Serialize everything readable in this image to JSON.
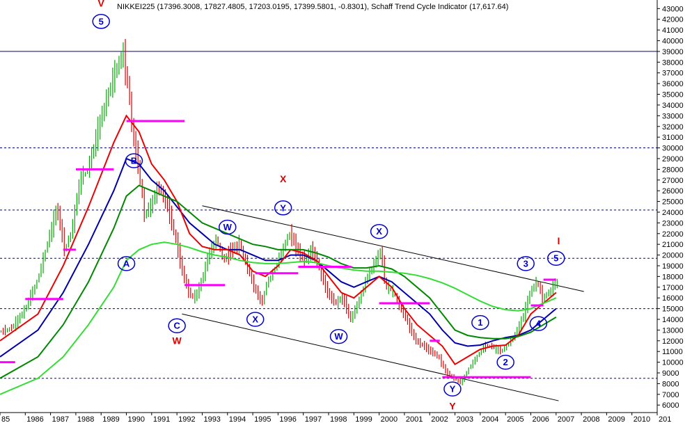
{
  "chart_data": {
    "type": "line",
    "title": "NIKKEI225 (17396.3008, 17827.4805, 17203.0195, 17399.5801, -0.8301), Schaff Trend Cycle Indicator (17,617.64)",
    "y_ticks": [
      6000,
      7000,
      8000,
      9000,
      10000,
      11000,
      12000,
      13000,
      14000,
      15000,
      16000,
      17000,
      18000,
      19000,
      20000,
      21000,
      22000,
      23000,
      24000,
      25000,
      26000,
      27000,
      28000,
      29000,
      30000,
      31000,
      32000,
      33000,
      34000,
      35000,
      36000,
      37000,
      38000,
      39000,
      40000,
      41000,
      42000,
      43000
    ],
    "ylim": [
      5300,
      43800
    ],
    "x_ticks": [
      "85",
      "1986",
      "1987",
      "1988",
      "1989",
      "1990",
      "1991",
      "1992",
      "1993",
      "1994",
      "1995",
      "1996",
      "1997",
      "1998",
      "1999",
      "2000",
      "2001",
      "2002",
      "2003",
      "2004",
      "2005",
      "2006",
      "2007",
      "2008",
      "2009",
      "2010",
      "201"
    ],
    "xlim": [
      1985.0,
      2011.0
    ],
    "price": {
      "name": "",
      "x": [
        1985.0,
        1985.5,
        1986.0,
        1986.5,
        1987.0,
        1987.3,
        1987.6,
        1987.9,
        1988.2,
        1988.5,
        1988.8,
        1989.0,
        1989.3,
        1989.6,
        1989.9,
        1990.1,
        1990.3,
        1990.5,
        1990.75,
        1991.0,
        1991.3,
        1991.6,
        1991.9,
        1992.2,
        1992.5,
        1992.75,
        1993.0,
        1993.3,
        1993.6,
        1993.9,
        1994.2,
        1994.5,
        1994.8,
        1995.1,
        1995.4,
        1995.6,
        1995.9,
        1996.2,
        1996.5,
        1996.8,
        1997.1,
        1997.4,
        1997.7,
        1998.0,
        1998.3,
        1998.6,
        1998.9,
        1999.2,
        1999.5,
        1999.8,
        2000.1,
        2000.3,
        2000.6,
        2000.9,
        2001.2,
        2001.5,
        2001.8,
        2002.1,
        2002.4,
        2002.7,
        2003.0,
        2003.3,
        2003.6,
        2003.9,
        2004.2,
        2004.5,
        2004.8,
        2005.1,
        2005.4,
        2005.7,
        2006.0,
        2006.3,
        2006.5,
        2006.8,
        2007.0
      ],
      "y": [
        12800,
        13200,
        14800,
        17500,
        21800,
        24500,
        20500,
        22500,
        27000,
        28000,
        30500,
        32500,
        35000,
        37000,
        38900,
        36000,
        31000,
        28500,
        23800,
        24500,
        26500,
        25000,
        22500,
        19000,
        16500,
        16000,
        17500,
        20000,
        21500,
        19500,
        20500,
        21000,
        19000,
        17000,
        15500,
        17500,
        18500,
        20500,
        22000,
        20500,
        19500,
        20500,
        18500,
        16500,
        15500,
        16000,
        14000,
        15500,
        17500,
        19000,
        20500,
        17000,
        16500,
        15000,
        13500,
        12000,
        11500,
        11000,
        10500,
        9000,
        8500,
        8100,
        9500,
        10500,
        11500,
        11500,
        11000,
        11500,
        12500,
        14000,
        16500,
        17500,
        16000,
        16500,
        17400
      ]
    },
    "series": [
      {
        "name": "",
        "color": "#0000aa",
        "x": [
          1985.0,
          1986.5,
          1987.5,
          1988.5,
          1989.5,
          1990.0,
          1990.5,
          1991.0,
          1991.5,
          1992.0,
          1992.5,
          1993.0,
          1993.5,
          1994.0,
          1994.5,
          1995.0,
          1995.5,
          1996.0,
          1996.5,
          1997.0,
          1997.5,
          1998.0,
          1998.5,
          1999.0,
          1999.5,
          2000.0,
          2000.5,
          2001.0,
          2001.5,
          2002.0,
          2002.5,
          2003.0,
          2003.5,
          2004.0,
          2004.5,
          2005.0,
          2005.5,
          2006.0,
          2006.5,
          2007.0
        ],
        "y": [
          10500,
          13000,
          16500,
          21000,
          26000,
          29000,
          28500,
          27000,
          26000,
          24500,
          23000,
          22000,
          21000,
          20500,
          20500,
          20000,
          19500,
          19500,
          20000,
          20000,
          19500,
          18500,
          17500,
          17000,
          17500,
          18000,
          17500,
          16500,
          15500,
          14500,
          13000,
          11800,
          11500,
          11600,
          12000,
          12300,
          12500,
          13000,
          14000,
          15000
        ]
      },
      {
        "name": "",
        "color": "#ee0000",
        "x": [
          1985.0,
          1986.5,
          1987.5,
          1988.5,
          1989.5,
          1990.0,
          1990.5,
          1991.0,
          1991.5,
          1992.0,
          1992.5,
          1993.0,
          1993.5,
          1994.0,
          1994.5,
          1995.0,
          1995.5,
          1996.0,
          1996.5,
          1997.0,
          1997.5,
          1998.0,
          1998.5,
          1999.0,
          1999.5,
          2000.0,
          2000.5,
          2001.0,
          2001.5,
          2002.0,
          2002.5,
          2003.0,
          2003.5,
          2004.0,
          2004.5,
          2005.0,
          2005.5,
          2006.0,
          2006.5,
          2007.0
        ],
        "y": [
          12000,
          14500,
          19000,
          24500,
          30500,
          33000,
          31500,
          28500,
          27000,
          25000,
          22000,
          20800,
          20500,
          20500,
          20000,
          18500,
          18000,
          19000,
          20500,
          20200,
          19500,
          18000,
          16500,
          16000,
          17000,
          18000,
          17000,
          15000,
          13500,
          12500,
          11500,
          9800,
          10500,
          11200,
          11500,
          11600,
          12500,
          14500,
          15500,
          16500
        ]
      },
      {
        "name": "",
        "color": "#008800",
        "x": [
          1985.0,
          1986.5,
          1987.5,
          1988.5,
          1989.5,
          1990.0,
          1990.5,
          1991.0,
          1991.5,
          1992.0,
          1992.5,
          1993.0,
          1993.5,
          1994.0,
          1994.5,
          1995.0,
          1995.5,
          1996.0,
          1996.5,
          1997.0,
          1997.5,
          1998.0,
          1998.5,
          1999.0,
          1999.5,
          2000.0,
          2000.5,
          2001.0,
          2001.5,
          2002.0,
          2002.5,
          2003.0,
          2003.5,
          2004.0,
          2004.5,
          2005.0,
          2005.5,
          2006.0,
          2006.5,
          2007.0
        ],
        "y": [
          8500,
          10500,
          13500,
          17500,
          22500,
          25500,
          26500,
          26000,
          25500,
          25000,
          24000,
          23000,
          22500,
          22000,
          21500,
          21000,
          20800,
          20500,
          20500,
          20500,
          20200,
          19800,
          19200,
          18800,
          18800,
          19000,
          18700,
          18000,
          17000,
          16000,
          14500,
          13000,
          12500,
          12300,
          12200,
          12200,
          12400,
          12800,
          13500,
          14200
        ]
      },
      {
        "name": "",
        "color": "#33dd33",
        "x": [
          1985.0,
          1986.5,
          1987.5,
          1988.5,
          1989.5,
          1990.0,
          1990.5,
          1991.0,
          1991.5,
          1992.0,
          1992.5,
          1993.0,
          1993.5,
          1994.0,
          1994.5,
          1995.0,
          1995.5,
          1996.0,
          1996.5,
          1997.0,
          1997.5,
          1998.0,
          1998.5,
          1999.0,
          1999.5,
          2000.0,
          2000.5,
          2001.0,
          2001.5,
          2002.0,
          2002.5,
          2003.0,
          2003.5,
          2004.0,
          2004.5,
          2005.0,
          2005.5,
          2006.0,
          2006.5,
          2007.0
        ],
        "y": [
          7000,
          8500,
          10500,
          13500,
          17000,
          19500,
          20500,
          21000,
          21200,
          21000,
          20700,
          20300,
          20000,
          19800,
          19500,
          19300,
          19200,
          19200,
          19300,
          19400,
          19300,
          19000,
          18800,
          18600,
          18500,
          18500,
          18400,
          18300,
          18100,
          17800,
          17400,
          16900,
          16300,
          15700,
          15200,
          14900,
          14800,
          15000,
          15500,
          16000
        ]
      }
    ],
    "hlines_solid": [
      39000
    ],
    "hlines_dashed": [
      30000,
      24200,
      19700,
      15000,
      8500
    ],
    "channel_lines": [
      {
        "x1": 1993.0,
        "y1": 24600,
        "x2": 2008.1,
        "y2": 16600
      },
      {
        "x1": 1992.2,
        "y1": 14500,
        "x2": 2007.1,
        "y2": 6400
      }
    ],
    "magenta_segments": [
      {
        "x1": 1985.0,
        "x2": 1985.6,
        "y": 10000
      },
      {
        "x1": 1986.0,
        "x2": 1987.5,
        "y": 15900
      },
      {
        "x1": 1987.5,
        "x2": 1988.0,
        "y": 20500
      },
      {
        "x1": 1988.0,
        "x2": 1989.5,
        "y": 28000
      },
      {
        "x1": 1990.0,
        "x2": 1992.3,
        "y": 32500
      },
      {
        "x1": 1992.3,
        "x2": 1993.9,
        "y": 17200
      },
      {
        "x1": 1995.1,
        "x2": 1996.8,
        "y": 18300
      },
      {
        "x1": 1996.8,
        "x2": 1998.9,
        "y": 18900
      },
      {
        "x1": 2000.0,
        "x2": 2002.0,
        "y": 15500
      },
      {
        "x1": 2002.0,
        "x2": 2002.4,
        "y": 12000
      },
      {
        "x1": 2002.5,
        "x2": 2006.0,
        "y": 8600
      },
      {
        "x1": 2006.0,
        "x2": 2006.5,
        "y": 15300
      },
      {
        "x1": 2006.5,
        "x2": 2007.0,
        "y": 17700
      }
    ],
    "wave_labels_circled": [
      {
        "text": "5",
        "x": 1989.0,
        "y": 41800
      },
      {
        "text": "B",
        "x": 1990.3,
        "y": 28800
      },
      {
        "text": "A",
        "x": 1990.0,
        "y": 19200
      },
      {
        "text": "C",
        "x": 1992.0,
        "y": 13400
      },
      {
        "text": "W",
        "x": 1994.0,
        "y": 22600
      },
      {
        "text": "X",
        "x": 1995.1,
        "y": 14000
      },
      {
        "text": "Y",
        "x": 1996.2,
        "y": 24400
      },
      {
        "text": "W",
        "x": 1998.4,
        "y": 12400
      },
      {
        "text": "X",
        "x": 2000.0,
        "y": 22200
      },
      {
        "text": "Y",
        "x": 2002.9,
        "y": 7500
      },
      {
        "text": "1",
        "x": 2004.0,
        "y": 13700
      },
      {
        "text": "2",
        "x": 2005.0,
        "y": 10000
      },
      {
        "text": "3",
        "x": 2005.8,
        "y": 19200
      },
      {
        "text": "4",
        "x": 2006.3,
        "y": 13600
      },
      {
        "text": "5",
        "x": 2007.0,
        "y": 19700
      }
    ],
    "wave_labels_red": [
      {
        "text": "V",
        "x": 1989.0,
        "y": 43200
      },
      {
        "text": "X",
        "x": 1996.2,
        "y": 26800
      },
      {
        "text": "W",
        "x": 1992.0,
        "y": 11700
      },
      {
        "text": "Y",
        "x": 2002.9,
        "y": 5600
      },
      {
        "text": "I",
        "x": 2007.1,
        "y": 21000
      }
    ],
    "grid": false,
    "colors": {
      "price_up": "#00aa00",
      "price_down": "#dd0000",
      "magenta": "#ff00ff",
      "axis": "#000000"
    }
  }
}
